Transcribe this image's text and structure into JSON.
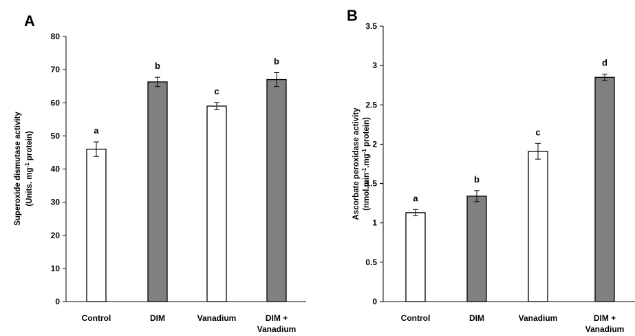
{
  "chart_data": [
    {
      "type": "bar",
      "panel_label": "A",
      "ylabel_line1": "Superoxide dismutase activity",
      "ylabel_line2_parts": [
        "(Units. mg",
        "-1",
        " protein)"
      ],
      "categories": [
        [
          "Control"
        ],
        [
          "DIM"
        ],
        [
          "Vanadium"
        ],
        [
          "DIM +",
          "Vanadium"
        ]
      ],
      "values": [
        46,
        66.3,
        59,
        67
      ],
      "errors": [
        2.2,
        1.4,
        1.1,
        2.1
      ],
      "significance_letters": [
        "a",
        "b",
        "c",
        "b"
      ],
      "bar_colors": [
        "#ffffff",
        "#808080",
        "#ffffff",
        "#808080"
      ],
      "ylim": [
        0,
        80
      ],
      "yticks": [
        0,
        10,
        20,
        30,
        40,
        50,
        60,
        70,
        80
      ],
      "ytick_labels": [
        "0",
        "10",
        "20",
        "30",
        "40",
        "50",
        "60",
        "70",
        "80"
      ]
    },
    {
      "type": "bar",
      "panel_label": "B",
      "ylabel_line1": "Ascorbate peroxidase activity",
      "ylabel_line2_parts": [
        "(nmol.min",
        "-1",
        ".mg",
        "-1",
        " protein)"
      ],
      "categories": [
        [
          "Control"
        ],
        [
          "DIM"
        ],
        [
          "Vanadium"
        ],
        [
          "DIM +",
          "Vanadium"
        ]
      ],
      "values": [
        1.13,
        1.34,
        1.91,
        2.85
      ],
      "errors": [
        0.04,
        0.07,
        0.1,
        0.04
      ],
      "significance_letters": [
        "a",
        "b",
        "c",
        "d"
      ],
      "bar_colors": [
        "#ffffff",
        "#808080",
        "#ffffff",
        "#808080"
      ],
      "ylim": [
        0,
        3.5
      ],
      "yticks": [
        0,
        0.5,
        1,
        1.5,
        2,
        2.5,
        3,
        3.5
      ],
      "ytick_labels": [
        "0",
        "0.5",
        "1",
        "1.5",
        "2",
        "2.5",
        "3",
        "3.5"
      ]
    }
  ]
}
